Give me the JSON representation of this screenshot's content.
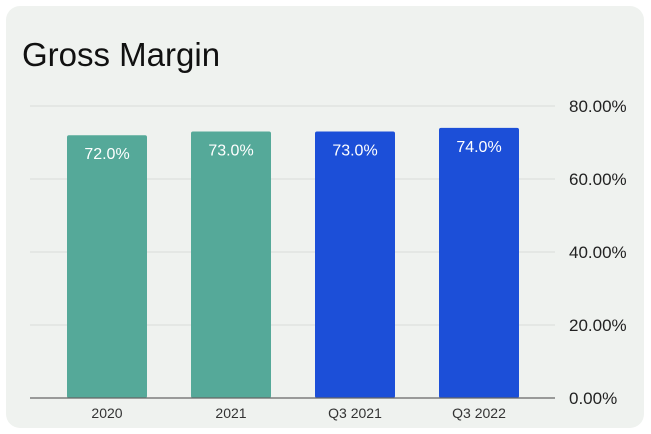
{
  "chart_data": {
    "type": "bar",
    "title": "Gross Margin",
    "categories": [
      "2020",
      "2021",
      "Q3 2021",
      "Q3 2022"
    ],
    "values": [
      72.0,
      73.0,
      73.0,
      74.0
    ],
    "data_labels": [
      "72.0%",
      "73.0%",
      "73.0%",
      "74.0%"
    ],
    "bar_colors": [
      "#55a999",
      "#55a999",
      "#1c4fd8",
      "#1c4fd8"
    ],
    "ylim": [
      0,
      80
    ],
    "yticks": [
      0,
      20,
      40,
      60,
      80
    ],
    "ytick_labels": [
      "0.00%",
      "20.00%",
      "40.00%",
      "60.00%",
      "80.00%"
    ],
    "y_axis_side": "right",
    "grid": true,
    "xlabel": "",
    "ylabel": ""
  },
  "colors": {
    "background": "#eff2ef",
    "gridline": "#d8dcd8",
    "baseline": "#666666"
  }
}
